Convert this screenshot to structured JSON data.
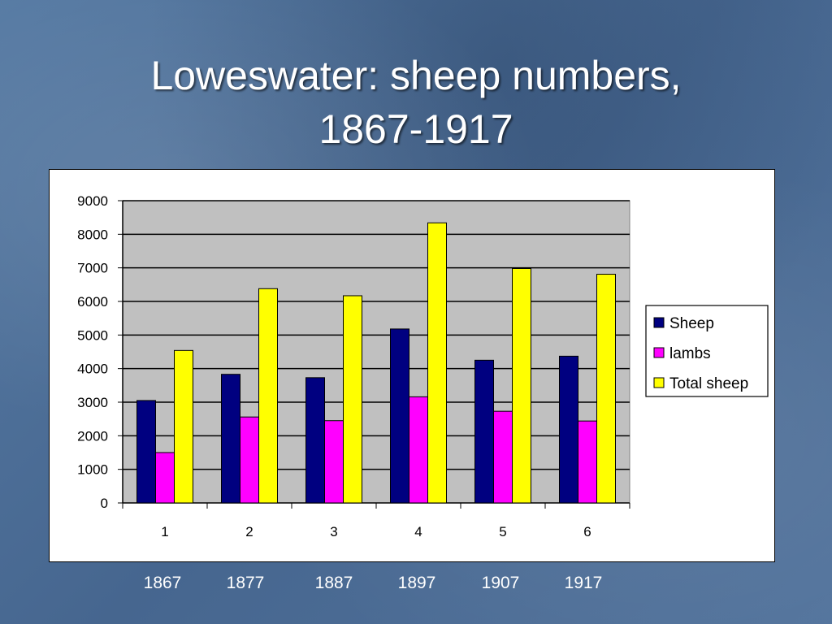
{
  "slide": {
    "title_line1": "Loweswater: sheep numbers,",
    "title_line2": "1867-1917"
  },
  "years": [
    "1867",
    "1877",
    "1887",
    "1897",
    "1907",
    "1917"
  ],
  "chart_data": {
    "type": "bar",
    "categories": [
      "1",
      "2",
      "3",
      "4",
      "5",
      "6"
    ],
    "series": [
      {
        "name": "Sheep",
        "color": "#000080",
        "values": [
          3050,
          3830,
          3730,
          5180,
          4250,
          4370
        ]
      },
      {
        "name": "lambs",
        "color": "#ff00ff",
        "values": [
          1500,
          2560,
          2450,
          3160,
          2730,
          2440
        ]
      },
      {
        "name": "Total sheep",
        "color": "#ffff00",
        "values": [
          4540,
          6380,
          6170,
          8340,
          6980,
          6810
        ]
      }
    ],
    "ylim": [
      0,
      9000
    ],
    "yticks": [
      0,
      1000,
      2000,
      3000,
      4000,
      5000,
      6000,
      7000,
      8000,
      9000
    ],
    "grid": true,
    "plot_background": "#c0c0c0",
    "legend_position": "right"
  }
}
